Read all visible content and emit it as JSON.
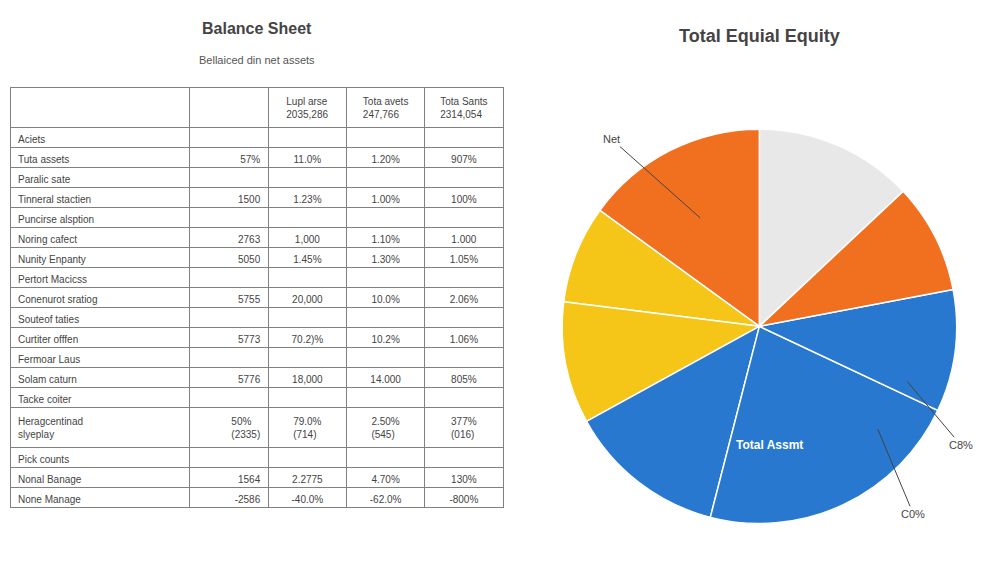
{
  "chart_data": [
    {
      "type": "table",
      "title": "Balance Sheet",
      "subtitle": "Bellaiced din net assets",
      "columns": [
        "Lupl arse",
        "Tota avets",
        "Tota Sants"
      ],
      "column_sub": [
        "2035,286",
        "247,766",
        "2314,054"
      ],
      "rows": [
        {
          "label": "Aciets",
          "values": []
        },
        {
          "label": "Tuta assets",
          "values": [
            "57%",
            "11.0%",
            "1.20%",
            "907%"
          ]
        },
        {
          "label": "Paralic sate",
          "values": []
        },
        {
          "label": "Tinneral stactien",
          "values": [
            "1500",
            "1.23%",
            "1.00%",
            "100%"
          ]
        },
        {
          "label": "Puncirse alsption",
          "values": []
        },
        {
          "label": "Noring cafect",
          "values": [
            "2763",
            "1,000",
            "1.10%",
            "1.000"
          ]
        },
        {
          "label": "Nunity Enpanty",
          "values": [
            "5050",
            "1.45%",
            "1.30%",
            "1.05%"
          ]
        },
        {
          "label": "Pertort Macicss",
          "values": []
        },
        {
          "label": "Conenurot sratiog",
          "values": [
            "5755",
            "20,000",
            "10.0%",
            "2.06%"
          ]
        },
        {
          "label": "Souteof taties",
          "values": []
        },
        {
          "label": "Curtiter offfen",
          "values": [
            "5773",
            "70.2)%",
            "10.2%",
            "1.06%"
          ]
        },
        {
          "label": "Fermoar Laus",
          "values": []
        },
        {
          "label": "Solam caturn",
          "values": [
            "5776",
            "18,000",
            "14.000",
            "805%"
          ]
        },
        {
          "label": "Tacke coiter",
          "values": []
        },
        {
          "label": "Heragcentinad\nslyeplay",
          "values": [
            "50%\n(2335)",
            "79.0%\n(714)",
            "2.50%\n(545)",
            "377%\n(016)"
          ]
        },
        {
          "label": "Pick counts",
          "values": []
        },
        {
          "label": "Nonal Banage",
          "values": [
            "1564",
            "2.2775",
            "4.70%",
            "130%"
          ]
        },
        {
          "label": "None Manage",
          "values": [
            "-2586",
            "-40.0%",
            "-62.0%",
            "-800%"
          ]
        }
      ]
    },
    {
      "type": "pie",
      "title": "Total Equial Equity",
      "values": [
        13,
        15,
        8,
        10,
        13,
        22,
        10,
        9
      ],
      "colors": [
        "#e8e8e8",
        "#f07020",
        "#f5c518",
        "#f5c518",
        "#2878d0",
        "#2878d0",
        "#2878d0",
        "#f07020"
      ],
      "annotations": [
        "Net",
        "Total Assmt",
        "C8%",
        "C0%"
      ]
    }
  ]
}
